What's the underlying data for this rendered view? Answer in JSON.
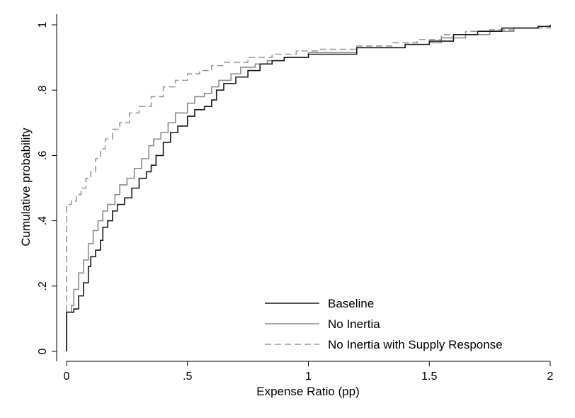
{
  "chart_data": {
    "type": "line",
    "xlabel": "Expense Ratio (pp)",
    "ylabel": "Cumulative probability",
    "xlim": [
      0,
      2
    ],
    "ylim": [
      0,
      1
    ],
    "xticks": [
      {
        "value": 0,
        "label": "0"
      },
      {
        "value": 0.5,
        "label": ".5"
      },
      {
        "value": 1,
        "label": "1"
      },
      {
        "value": 1.5,
        "label": "1.5"
      },
      {
        "value": 2,
        "label": "2"
      }
    ],
    "yticks": [
      {
        "value": 0,
        "label": "0"
      },
      {
        "value": 0.2,
        "label": ".2"
      },
      {
        "value": 0.4,
        "label": ".4"
      },
      {
        "value": 0.6,
        "label": ".6"
      },
      {
        "value": 0.8,
        "label": ".8"
      },
      {
        "value": 1,
        "label": "1"
      }
    ],
    "grid": false,
    "legend_position": "bottom-right",
    "series": [
      {
        "name": "Baseline",
        "color": "#1a1a1a",
        "dash": "solid",
        "points": [
          [
            0,
            0
          ],
          [
            0,
            0.12
          ],
          [
            0.03,
            0.13
          ],
          [
            0.05,
            0.17
          ],
          [
            0.07,
            0.21
          ],
          [
            0.09,
            0.26
          ],
          [
            0.1,
            0.29
          ],
          [
            0.12,
            0.31
          ],
          [
            0.14,
            0.34
          ],
          [
            0.15,
            0.38
          ],
          [
            0.17,
            0.4
          ],
          [
            0.19,
            0.43
          ],
          [
            0.21,
            0.45
          ],
          [
            0.24,
            0.47
          ],
          [
            0.27,
            0.5
          ],
          [
            0.3,
            0.53
          ],
          [
            0.33,
            0.55
          ],
          [
            0.35,
            0.57
          ],
          [
            0.37,
            0.6
          ],
          [
            0.4,
            0.64
          ],
          [
            0.43,
            0.67
          ],
          [
            0.46,
            0.69
          ],
          [
            0.5,
            0.72
          ],
          [
            0.53,
            0.74
          ],
          [
            0.57,
            0.75
          ],
          [
            0.6,
            0.77
          ],
          [
            0.62,
            0.8
          ],
          [
            0.65,
            0.82
          ],
          [
            0.7,
            0.84
          ],
          [
            0.75,
            0.86
          ],
          [
            0.8,
            0.88
          ],
          [
            0.85,
            0.89
          ],
          [
            0.9,
            0.9
          ],
          [
            1,
            0.91
          ],
          [
            1.2,
            0.93
          ],
          [
            1.4,
            0.94
          ],
          [
            1.5,
            0.95
          ],
          [
            1.6,
            0.97
          ],
          [
            1.7,
            0.98
          ],
          [
            1.8,
            0.99
          ],
          [
            1.95,
            0.995
          ],
          [
            2,
            1
          ]
        ]
      },
      {
        "name": "No Inertia",
        "color": "#8c8c8c",
        "dash": "solid",
        "points": [
          [
            0,
            0
          ],
          [
            0,
            0.12
          ],
          [
            0.02,
            0.14
          ],
          [
            0.03,
            0.19
          ],
          [
            0.05,
            0.24
          ],
          [
            0.07,
            0.28
          ],
          [
            0.09,
            0.33
          ],
          [
            0.11,
            0.37
          ],
          [
            0.13,
            0.4
          ],
          [
            0.15,
            0.43
          ],
          [
            0.17,
            0.45
          ],
          [
            0.2,
            0.48
          ],
          [
            0.22,
            0.51
          ],
          [
            0.25,
            0.53
          ],
          [
            0.28,
            0.56
          ],
          [
            0.31,
            0.59
          ],
          [
            0.34,
            0.63
          ],
          [
            0.36,
            0.65
          ],
          [
            0.39,
            0.67
          ],
          [
            0.42,
            0.7
          ],
          [
            0.45,
            0.73
          ],
          [
            0.5,
            0.76
          ],
          [
            0.53,
            0.78
          ],
          [
            0.57,
            0.79
          ],
          [
            0.6,
            0.81
          ],
          [
            0.63,
            0.83
          ],
          [
            0.68,
            0.85
          ],
          [
            0.72,
            0.87
          ],
          [
            0.78,
            0.88
          ],
          [
            0.83,
            0.89
          ],
          [
            0.9,
            0.9
          ],
          [
            1,
            0.915
          ],
          [
            1.2,
            0.93
          ],
          [
            1.4,
            0.94
          ],
          [
            1.5,
            0.945
          ],
          [
            1.55,
            0.96
          ],
          [
            1.65,
            0.97
          ],
          [
            1.75,
            0.98
          ],
          [
            1.85,
            0.99
          ],
          [
            1.95,
            0.995
          ],
          [
            2,
            1
          ]
        ]
      },
      {
        "name": "No Inertia with Supply Response",
        "color": "#9a9a9a",
        "dash": "dashed",
        "points": [
          [
            0,
            0
          ],
          [
            0,
            0.45
          ],
          [
            0.02,
            0.46
          ],
          [
            0.04,
            0.48
          ],
          [
            0.06,
            0.5
          ],
          [
            0.08,
            0.53
          ],
          [
            0.1,
            0.55
          ],
          [
            0.12,
            0.59
          ],
          [
            0.14,
            0.62
          ],
          [
            0.16,
            0.65
          ],
          [
            0.19,
            0.68
          ],
          [
            0.22,
            0.7
          ],
          [
            0.26,
            0.73
          ],
          [
            0.3,
            0.75
          ],
          [
            0.35,
            0.78
          ],
          [
            0.4,
            0.81
          ],
          [
            0.45,
            0.83
          ],
          [
            0.5,
            0.85
          ],
          [
            0.55,
            0.86
          ],
          [
            0.6,
            0.875
          ],
          [
            0.65,
            0.885
          ],
          [
            0.75,
            0.9
          ],
          [
            0.85,
            0.91
          ],
          [
            0.95,
            0.92
          ],
          [
            1.05,
            0.925
          ],
          [
            1.2,
            0.935
          ],
          [
            1.35,
            0.945
          ],
          [
            1.45,
            0.955
          ],
          [
            1.55,
            0.97
          ],
          [
            1.65,
            0.98
          ],
          [
            1.75,
            0.985
          ],
          [
            1.85,
            0.99
          ],
          [
            2,
            1
          ]
        ]
      }
    ]
  }
}
